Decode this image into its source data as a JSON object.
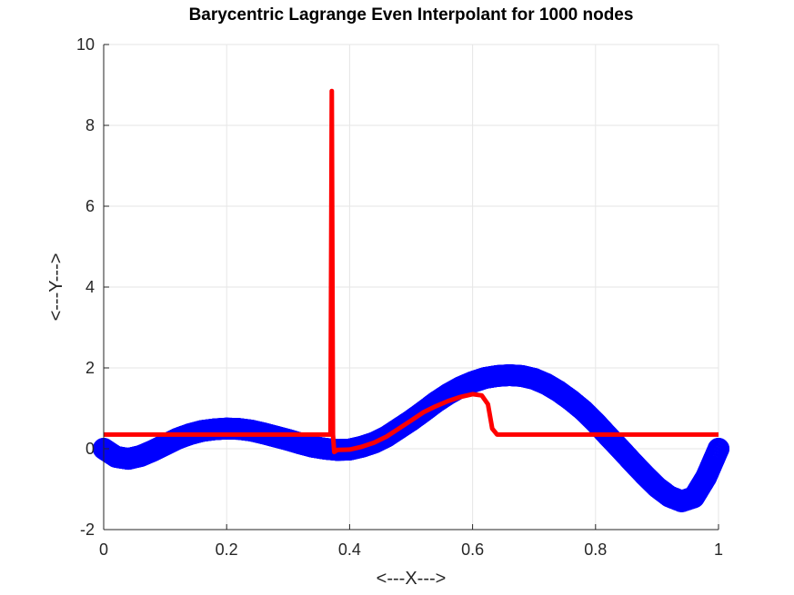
{
  "chart_data": {
    "type": "line",
    "title": "Barycentric Lagrange Even Interpolant for 1000 nodes",
    "xlabel": "<---X--->",
    "ylabel": "<---Y--->",
    "xlim": [
      0,
      1
    ],
    "ylim": [
      -2,
      10
    ],
    "xticks": [
      0,
      0.2,
      0.4,
      0.6,
      0.8,
      1
    ],
    "xtick_labels": [
      "0",
      "0.2",
      "0.4",
      "0.6",
      "0.8",
      "1"
    ],
    "yticks": [
      -2,
      0,
      2,
      4,
      6,
      8,
      10
    ],
    "ytick_labels": [
      "-2",
      "0",
      "2",
      "4",
      "6",
      "8",
      "10"
    ],
    "grid": true,
    "colors": {
      "marker_series": "#0000ff",
      "line_series": "#ff0000",
      "grid": "#e6e6e6",
      "axes": "#262626"
    },
    "series": [
      {
        "style": "markers",
        "x": [
          0,
          0.02,
          0.04,
          0.06,
          0.08,
          0.1,
          0.12,
          0.14,
          0.16,
          0.18,
          0.2,
          0.22,
          0.24,
          0.26,
          0.28,
          0.3,
          0.32,
          0.34,
          0.36,
          0.38,
          0.4,
          0.42,
          0.44,
          0.46,
          0.48,
          0.5,
          0.52,
          0.54,
          0.56,
          0.58,
          0.6,
          0.62,
          0.64,
          0.66,
          0.68,
          0.7,
          0.72,
          0.74,
          0.76,
          0.78,
          0.8,
          0.82,
          0.84,
          0.86,
          0.88,
          0.9,
          0.92,
          0.94,
          0.96,
          0.98,
          1
        ],
        "y": [
          0,
          -0.2,
          -0.25,
          -0.18,
          -0.05,
          0.1,
          0.25,
          0.36,
          0.44,
          0.48,
          0.5,
          0.49,
          0.45,
          0.38,
          0.3,
          0.22,
          0.13,
          0.05,
          0,
          -0.03,
          -0.02,
          0.05,
          0.15,
          0.3,
          0.5,
          0.7,
          0.92,
          1.15,
          1.35,
          1.52,
          1.65,
          1.75,
          1.8,
          1.82,
          1.8,
          1.73,
          1.6,
          1.42,
          1.2,
          0.95,
          0.65,
          0.32,
          0,
          -0.33,
          -0.65,
          -0.95,
          -1.18,
          -1.3,
          -1.2,
          -0.7,
          0
        ]
      },
      {
        "style": "line",
        "x": [
          0,
          0.1,
          0.2,
          0.3,
          0.365,
          0.369,
          0.371,
          0.373,
          0.375,
          0.38,
          0.4,
          0.42,
          0.44,
          0.46,
          0.48,
          0.5,
          0.52,
          0.54,
          0.56,
          0.58,
          0.6,
          0.615,
          0.625,
          0.632,
          0.64,
          0.7,
          0.8,
          0.9,
          1
        ],
        "y": [
          0.35,
          0.35,
          0.35,
          0.35,
          0.35,
          0.35,
          8.85,
          0.35,
          -0.08,
          -0.03,
          -0.02,
          0.05,
          0.15,
          0.3,
          0.5,
          0.7,
          0.9,
          1.05,
          1.18,
          1.28,
          1.35,
          1.32,
          1.1,
          0.5,
          0.35,
          0.35,
          0.35,
          0.35,
          0.35
        ]
      }
    ]
  }
}
